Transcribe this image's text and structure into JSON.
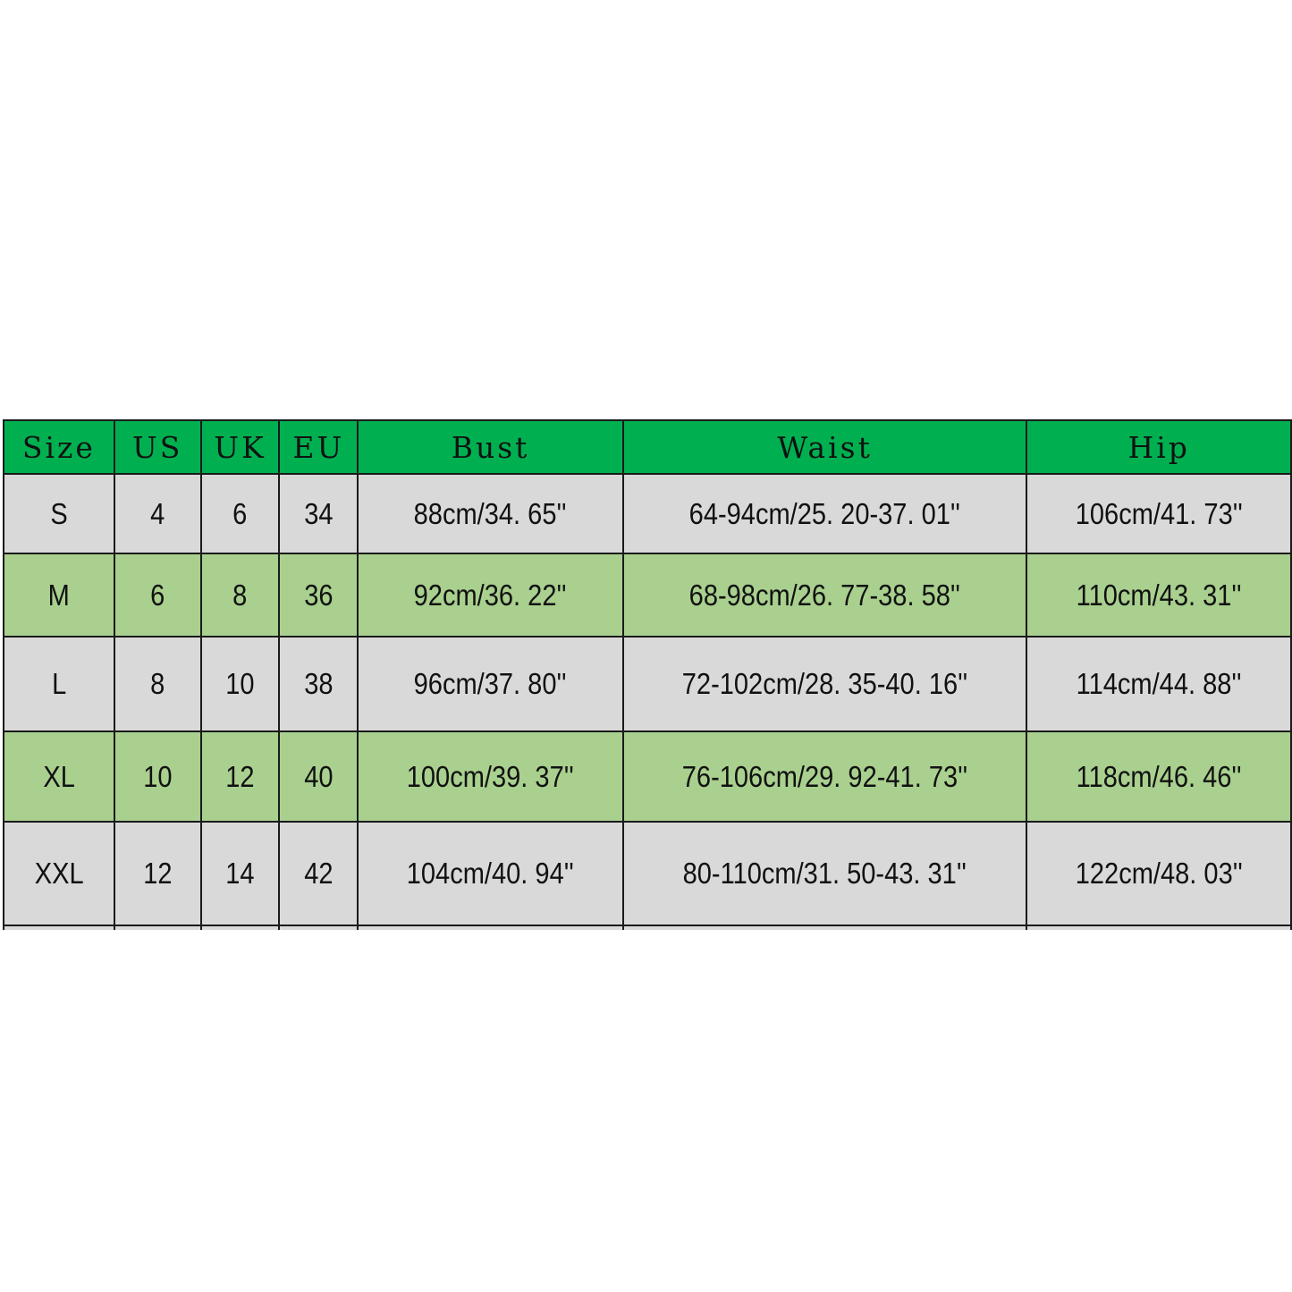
{
  "headers": [
    "Size",
    "US",
    "UK",
    "EU",
    "Bust",
    "Waist",
    "Hip"
  ],
  "rows": [
    [
      "S",
      "4",
      "6",
      "34",
      "88cm/34. 65''",
      "64-94cm/25. 20-37. 01''",
      "106cm/41. 73''"
    ],
    [
      "M",
      "6",
      "8",
      "36",
      "92cm/36. 22''",
      "68-98cm/26. 77-38. 58''",
      "110cm/43. 31''"
    ],
    [
      "L",
      "8",
      "10",
      "38",
      "96cm/37. 80''",
      "72-102cm/28. 35-40. 16''",
      "114cm/44. 88''"
    ],
    [
      "XL",
      "10",
      "12",
      "40",
      "100cm/39. 37''",
      "76-106cm/29. 92-41. 73''",
      "118cm/46. 46''"
    ],
    [
      "XXL",
      "12",
      "14",
      "42",
      "104cm/40. 94''",
      "80-110cm/31. 50-43. 31''",
      "122cm/48. 03''"
    ]
  ],
  "colors": {
    "header": "#00b050",
    "row_grey": "#d9d9d9",
    "row_green": "#a9d08e"
  }
}
